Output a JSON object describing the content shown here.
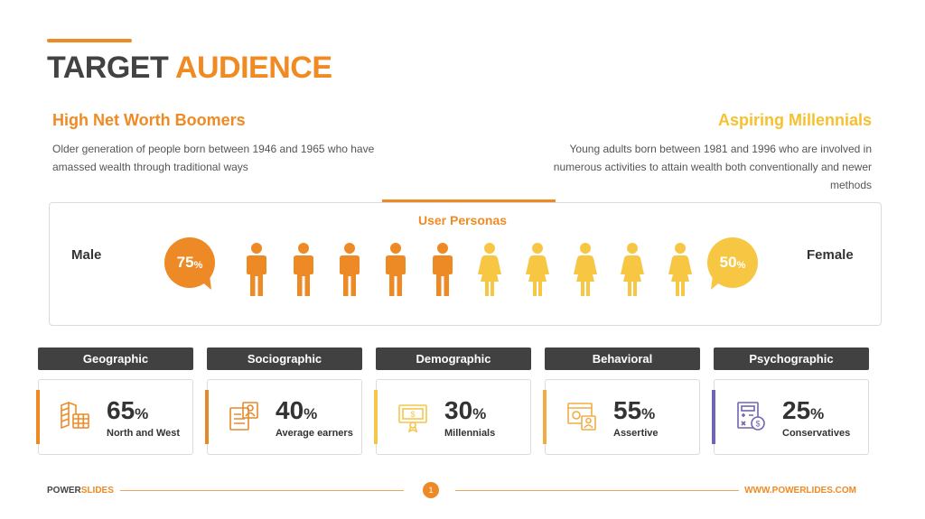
{
  "title": {
    "part1": "TARGET",
    "part2": "AUDIENCE"
  },
  "segments": {
    "left": {
      "title": "High Net Worth Boomers",
      "description": "Older generation of people born between 1946 and 1965 who have amassed wealth through traditional ways"
    },
    "right": {
      "title": "Aspiring Millennials",
      "description": "Young adults born between 1981 and 1996 who are involved in numerous activities to attain wealth both conventionally and newer methods"
    }
  },
  "personas": {
    "label": "User Personas",
    "male": {
      "label": "Male",
      "value": "75",
      "unit": "%",
      "icon": "male-person-icon",
      "color": "#ee8a26",
      "count": 5
    },
    "female": {
      "label": "Female",
      "value": "50",
      "unit": "%",
      "icon": "female-person-icon",
      "color": "#f7c744",
      "count": 5
    }
  },
  "categories": [
    {
      "name": "Geographic",
      "value": "65",
      "unit": "%",
      "label": "North and West",
      "icon": "map-grid-icon",
      "color": "#ee8a26"
    },
    {
      "name": "Sociographic",
      "value": "40",
      "unit": "%",
      "label": "Average earners",
      "icon": "id-card-icon",
      "color": "#e58a2c"
    },
    {
      "name": "Demographic",
      "value": "30",
      "unit": "%",
      "label": "Millennials",
      "icon": "certificate-icon",
      "color": "#f5c64a"
    },
    {
      "name": "Behavioral",
      "value": "55",
      "unit": "%",
      "label": "Assertive",
      "icon": "profile-window-icon",
      "color": "#f0ad44"
    },
    {
      "name": "Psychographic",
      "value": "25",
      "unit": "%",
      "label": "Conservatives",
      "icon": "calculator-money-icon",
      "color": "#6f66b3"
    }
  ],
  "footer": {
    "brand_part1": "POWER",
    "brand_part2": "SLIDES",
    "page": "1",
    "url": "WWW.POWERLIDES.COM"
  }
}
